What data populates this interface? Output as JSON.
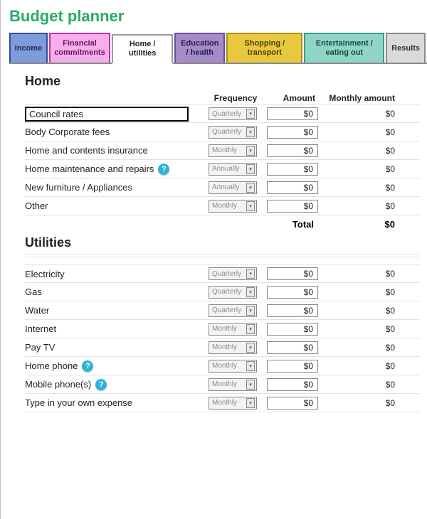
{
  "title": "Budget planner",
  "tabs": {
    "income": "Income",
    "financial": "Financial commitments",
    "homeutil": "Home / utilities",
    "edu": "Education / health",
    "shop": "Shopping / transport",
    "ent": "Entertainment / eating out",
    "results": "Results"
  },
  "headers": {
    "frequency": "Frequency",
    "amount": "Amount",
    "monthly": "Monthly amount"
  },
  "sections": {
    "home": {
      "title": "Home",
      "rows": [
        {
          "label": "Council rates",
          "freq": "Quarterly",
          "amount": "$0",
          "monthly": "$0",
          "boxed": true,
          "help": false
        },
        {
          "label": "Body Corporate fees",
          "freq": "Quarterly",
          "amount": "$0",
          "monthly": "$0",
          "boxed": false,
          "help": false
        },
        {
          "label": "Home and contents insurance",
          "freq": "Monthly",
          "amount": "$0",
          "monthly": "$0",
          "boxed": false,
          "help": false
        },
        {
          "label": "Home maintenance and repairs",
          "freq": "Annually",
          "amount": "$0",
          "monthly": "$0",
          "boxed": false,
          "help": true
        },
        {
          "label": "New furniture / Appliances",
          "freq": "Annually",
          "amount": "$0",
          "monthly": "$0",
          "boxed": false,
          "help": false
        },
        {
          "label": "Other",
          "freq": "Monthly",
          "amount": "$0",
          "monthly": "$0",
          "boxed": false,
          "help": false
        }
      ],
      "total_label": "Total",
      "total_value": "$0"
    },
    "utilities": {
      "title": "Utilities",
      "rows": [
        {
          "label": "Electricity",
          "freq": "Quarterly",
          "amount": "$0",
          "monthly": "$0",
          "boxed": false,
          "help": false
        },
        {
          "label": "Gas",
          "freq": "Quarterly",
          "amount": "$0",
          "monthly": "$0",
          "boxed": false,
          "help": false
        },
        {
          "label": "Water",
          "freq": "Quarterly",
          "amount": "$0",
          "monthly": "$0",
          "boxed": false,
          "help": false
        },
        {
          "label": "Internet",
          "freq": "Monthly",
          "amount": "$0",
          "monthly": "$0",
          "boxed": false,
          "help": false
        },
        {
          "label": "Pay TV",
          "freq": "Monthly",
          "amount": "$0",
          "monthly": "$0",
          "boxed": false,
          "help": false
        },
        {
          "label": "Home phone",
          "freq": "Monthly",
          "amount": "$0",
          "monthly": "$0",
          "boxed": false,
          "help": true
        },
        {
          "label": "Mobile phone(s)",
          "freq": "Monthly",
          "amount": "$0",
          "monthly": "$0",
          "boxed": false,
          "help": true
        },
        {
          "label": "Type in your own expense",
          "freq": "Monthly",
          "amount": "$0",
          "monthly": "$0",
          "boxed": false,
          "help": false
        }
      ]
    }
  },
  "colors": {
    "title": "#2aaa66",
    "rule": "#d8e4f0",
    "help": "#2bb5d8"
  }
}
